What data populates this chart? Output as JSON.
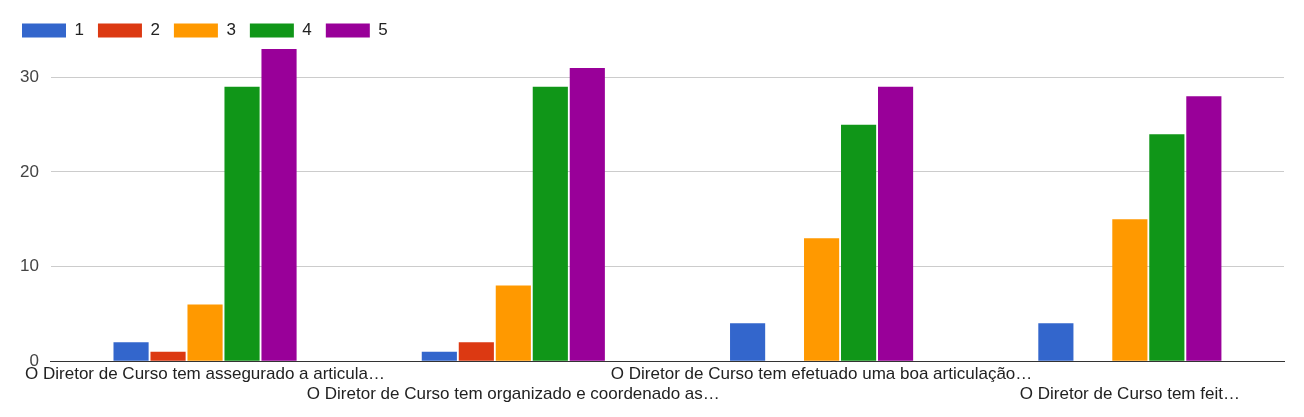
{
  "chart_data": {
    "type": "bar",
    "categories": [
      "O Diretor de Curso tem assegurado a articula…",
      "O Diretor de Curso tem organizado e coordenado as…",
      "O Diretor de Curso tem efetuado uma boa articulação…",
      "O Diretor de Curso tem feit…"
    ],
    "series": [
      {
        "name": "1",
        "color": "#3366cc",
        "values": [
          2,
          1,
          4,
          4
        ]
      },
      {
        "name": "2",
        "color": "#dc3912",
        "values": [
          1,
          2,
          0,
          0
        ]
      },
      {
        "name": "3",
        "color": "#ff9900",
        "values": [
          6,
          8,
          13,
          15
        ]
      },
      {
        "name": "4",
        "color": "#109618",
        "values": [
          29,
          29,
          25,
          24
        ]
      },
      {
        "name": "5",
        "color": "#990099",
        "values": [
          33,
          31,
          29,
          28
        ]
      }
    ],
    "ylim": [
      0,
      33
    ],
    "yticks": [
      0,
      10,
      20,
      30
    ],
    "grid": "y",
    "legend": "top left"
  }
}
